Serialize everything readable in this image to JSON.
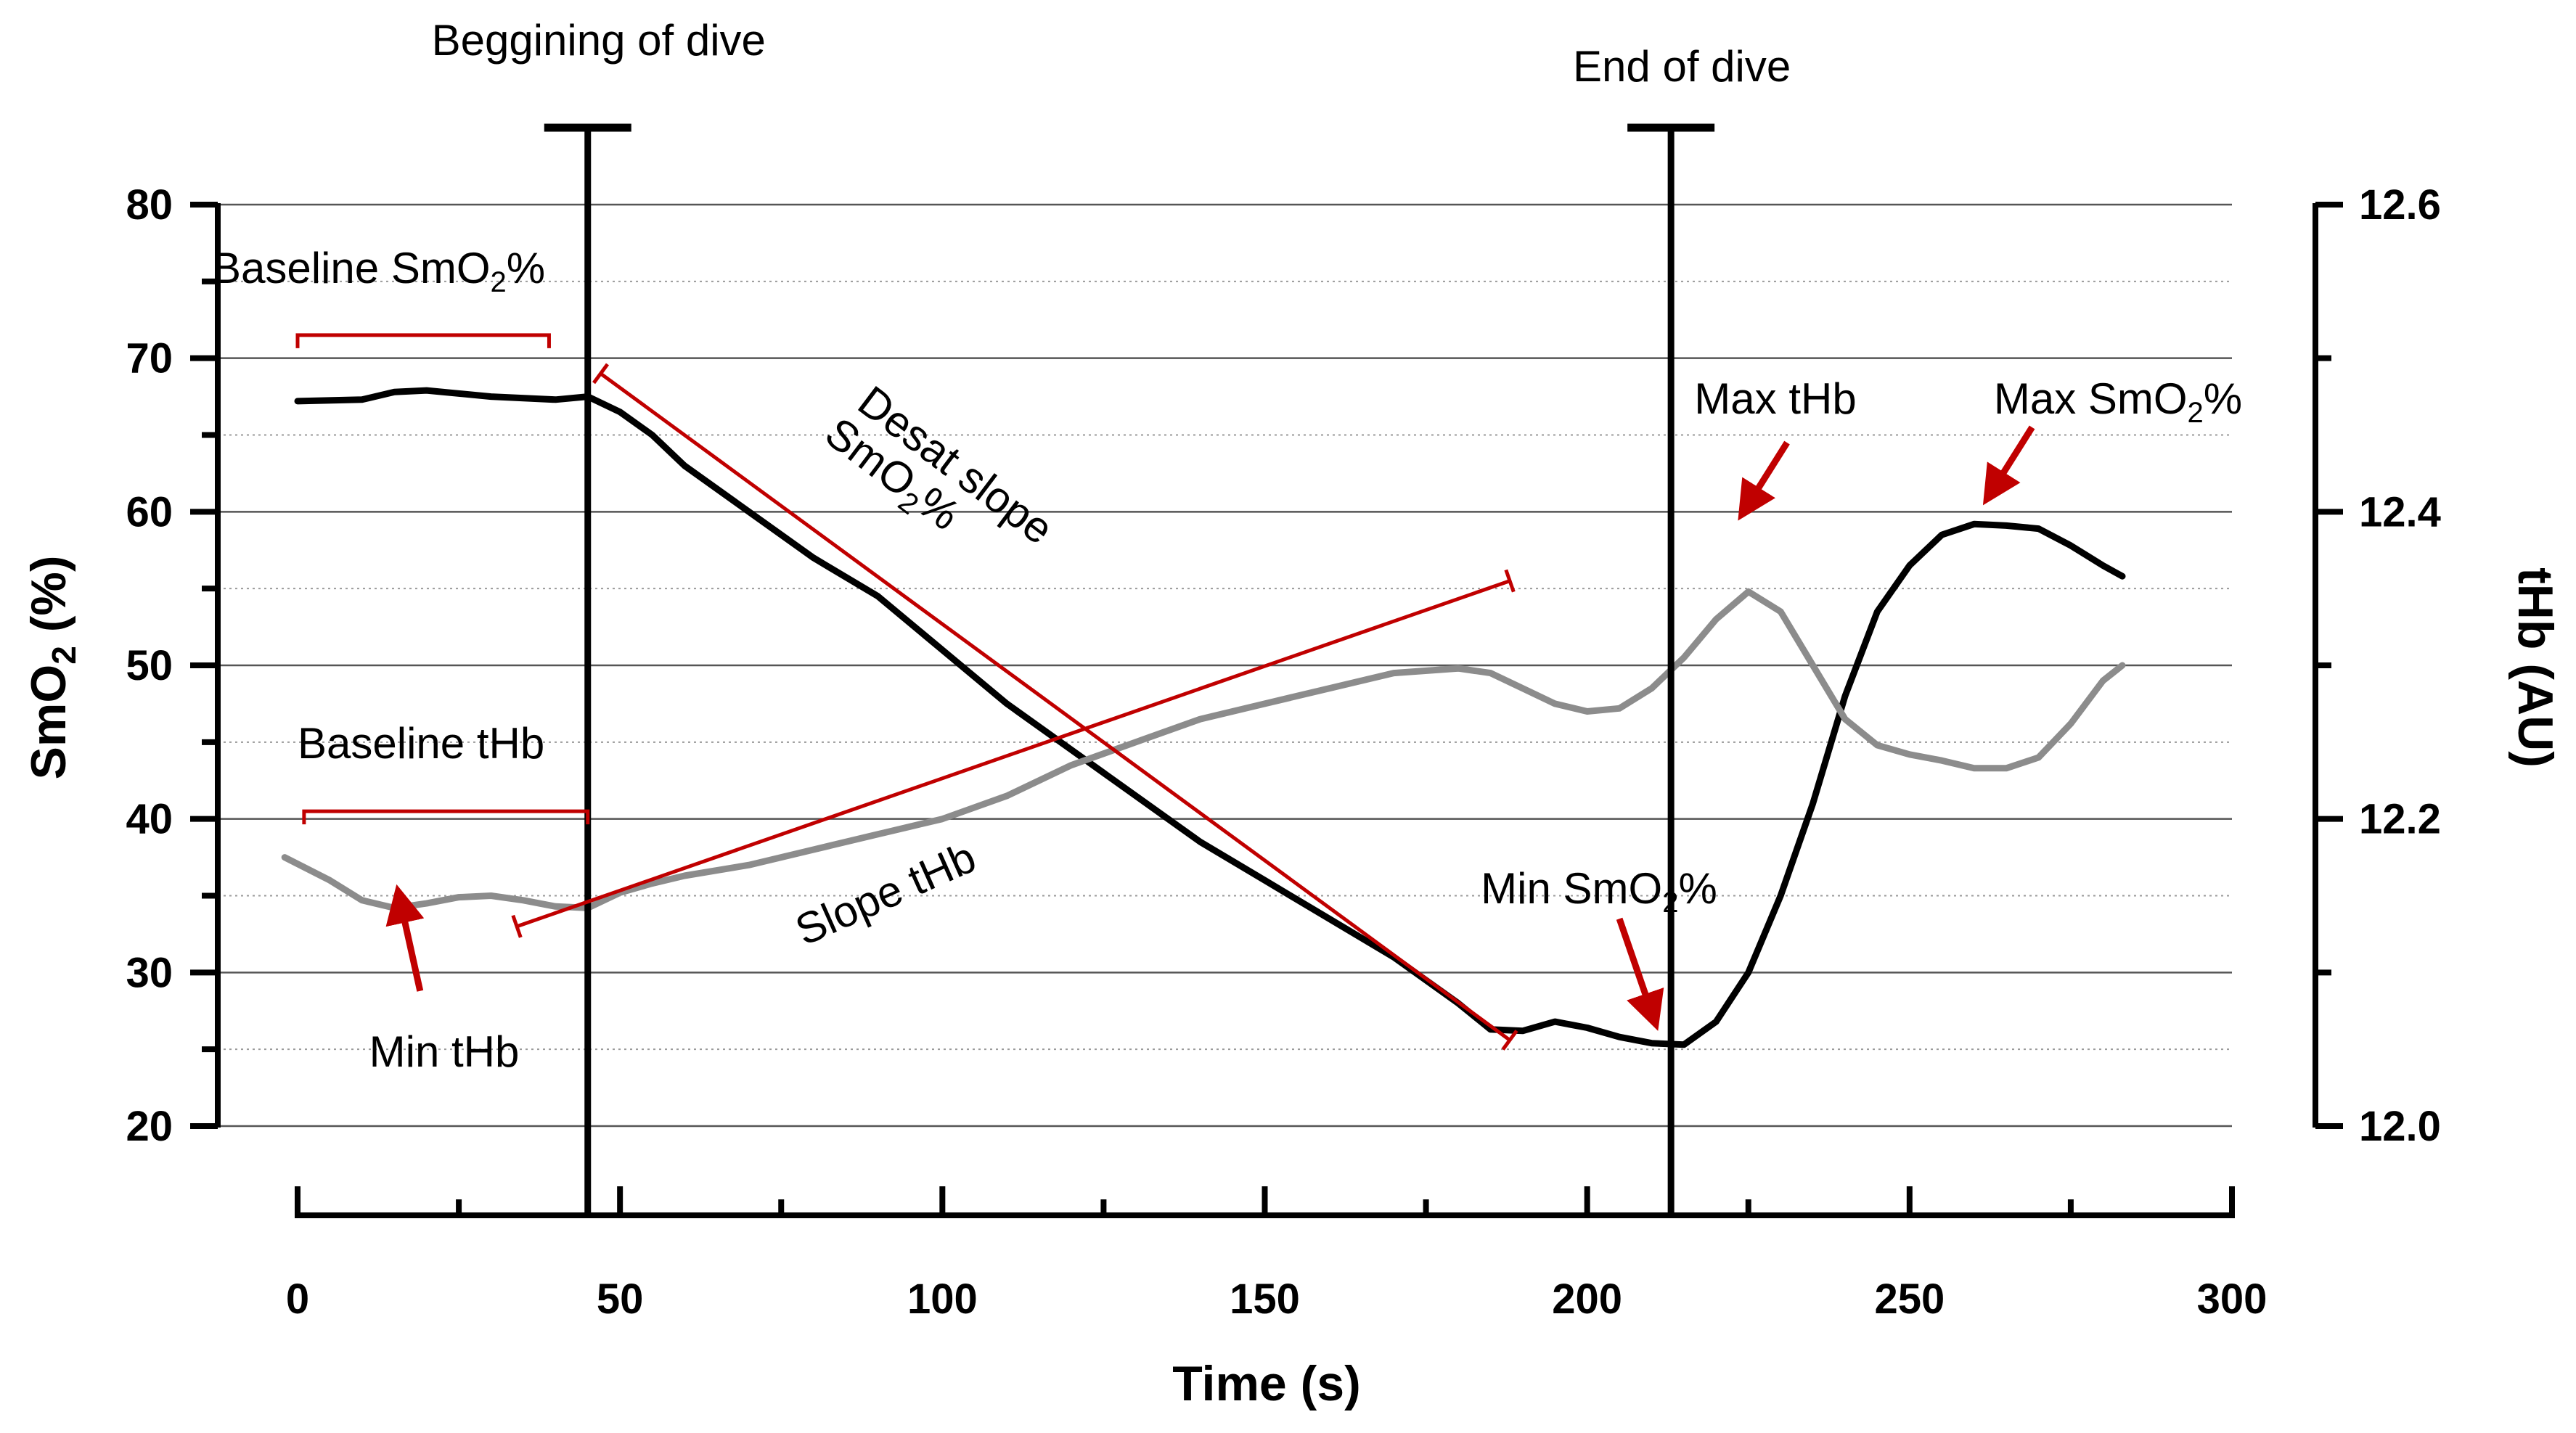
{
  "chart_data": {
    "type": "line",
    "xlabel": "Time (s)",
    "ylabel_left": {
      "main": "SmO",
      "sub": "2",
      "tail": " (%)"
    },
    "ylabel_right": "tHb (AU)",
    "xlim": [
      0,
      300
    ],
    "ylim_left": [
      20,
      80
    ],
    "ylim_right": [
      12.0,
      12.6
    ],
    "x_ticks": [
      0,
      50,
      100,
      150,
      200,
      250,
      300
    ],
    "y_left_ticks": [
      20,
      30,
      40,
      50,
      60,
      70,
      80
    ],
    "y_right_ticks": [
      "12.0",
      "12.2",
      "12.4",
      "12.6"
    ],
    "grid": "horizontal: solid at major SmO2 ticks, dotted at midpoints",
    "series": [
      {
        "name": "SmO2 (%)",
        "axis": "left",
        "color": "#000000",
        "points": [
          [
            0,
            67.2
          ],
          [
            10,
            67.3
          ],
          [
            15,
            67.8
          ],
          [
            20,
            67.9
          ],
          [
            30,
            67.5
          ],
          [
            40,
            67.3
          ],
          [
            45,
            67.5
          ],
          [
            50,
            66.5
          ],
          [
            55,
            65
          ],
          [
            60,
            63
          ],
          [
            70,
            60
          ],
          [
            80,
            57
          ],
          [
            90,
            54.5
          ],
          [
            100,
            51
          ],
          [
            110,
            47.5
          ],
          [
            120,
            44.5
          ],
          [
            130,
            41.5
          ],
          [
            140,
            38.5
          ],
          [
            150,
            36
          ],
          [
            160,
            33.5
          ],
          [
            170,
            31
          ],
          [
            180,
            28
          ],
          [
            185,
            26.3
          ],
          [
            190,
            26.2
          ],
          [
            195,
            26.8
          ],
          [
            200,
            26.4
          ],
          [
            205,
            25.8
          ],
          [
            210,
            25.4
          ],
          [
            215,
            25.3
          ],
          [
            220,
            26.8
          ],
          [
            225,
            30
          ],
          [
            230,
            35
          ],
          [
            235,
            41
          ],
          [
            240,
            48
          ],
          [
            245,
            53.5
          ],
          [
            250,
            56.5
          ],
          [
            255,
            58.5
          ],
          [
            260,
            59.2
          ],
          [
            265,
            59.1
          ],
          [
            270,
            58.9
          ],
          [
            275,
            57.8
          ],
          [
            280,
            56.5
          ],
          [
            283,
            55.8
          ]
        ]
      },
      {
        "name": "tHb (AU)",
        "axis": "right",
        "color": "#8c8c8c",
        "points": [
          [
            -2,
            12.175
          ],
          [
            5,
            12.16
          ],
          [
            10,
            12.147
          ],
          [
            15,
            12.142
          ],
          [
            20,
            12.145
          ],
          [
            25,
            12.149
          ],
          [
            30,
            12.15
          ],
          [
            35,
            12.147
          ],
          [
            40,
            12.143
          ],
          [
            45,
            12.142
          ],
          [
            50,
            12.152
          ],
          [
            55,
            12.158
          ],
          [
            60,
            12.163
          ],
          [
            70,
            12.17
          ],
          [
            80,
            12.18
          ],
          [
            90,
            12.19
          ],
          [
            100,
            12.2
          ],
          [
            110,
            12.215
          ],
          [
            120,
            12.235
          ],
          [
            130,
            12.25
          ],
          [
            140,
            12.265
          ],
          [
            150,
            12.275
          ],
          [
            160,
            12.285
          ],
          [
            170,
            12.295
          ],
          [
            180,
            12.298
          ],
          [
            185,
            12.295
          ],
          [
            190,
            12.285
          ],
          [
            195,
            12.275
          ],
          [
            200,
            12.27
          ],
          [
            205,
            12.272
          ],
          [
            210,
            12.285
          ],
          [
            215,
            12.305
          ],
          [
            220,
            12.33
          ],
          [
            225,
            12.348
          ],
          [
            230,
            12.335
          ],
          [
            235,
            12.3
          ],
          [
            240,
            12.265
          ],
          [
            245,
            12.248
          ],
          [
            250,
            12.242
          ],
          [
            255,
            12.238
          ],
          [
            260,
            12.233
          ],
          [
            265,
            12.233
          ],
          [
            270,
            12.24
          ],
          [
            275,
            12.262
          ],
          [
            280,
            12.29
          ],
          [
            283,
            12.3
          ]
        ]
      }
    ],
    "reference_lines": [
      {
        "name": "begin-dive",
        "x": 45,
        "label": "Beggining of dive"
      },
      {
        "name": "end-dive",
        "x": 213,
        "label": "End of dive"
      }
    ],
    "brackets": [
      {
        "name": "baseline-smo2",
        "x_start": 0,
        "x_end": 39,
        "y": 71.5,
        "label": {
          "main": "Baseline SmO",
          "sub": "2",
          "tail": "%"
        }
      },
      {
        "name": "baseline-thb",
        "x_start": 1,
        "x_end": 45,
        "y": 40.5,
        "label": {
          "main": "Baseline tHb",
          "sub": "",
          "tail": ""
        }
      }
    ],
    "slopes": [
      {
        "name": "desat-slope",
        "from": [
          47,
          69
        ],
        "to": [
          188,
          25.6
        ],
        "label_line1": "Desat slope",
        "label_line2": {
          "main": "SmO",
          "sub": "2",
          "tail": "%"
        }
      },
      {
        "name": "slope-thb",
        "from": [
          34,
          33
        ],
        "to": [
          188,
          55.5
        ],
        "label": "Slope tHb"
      }
    ],
    "arrows": [
      {
        "name": "min-thb",
        "label": "Min tHb",
        "tip": [
          16,
          34.5
        ],
        "tail": [
          19,
          28.8
        ]
      },
      {
        "name": "min-smo2",
        "label": {
          "main": "Min SmO",
          "sub": "2",
          "tail": "%"
        },
        "tip": [
          210,
          27.4
        ],
        "tail": [
          205,
          33.5
        ]
      },
      {
        "name": "max-thb",
        "label": "Max tHb",
        "tip": [
          225,
          60.5
        ],
        "tail": [
          231,
          64.5
        ]
      },
      {
        "name": "max-smo2",
        "label": {
          "main": "Max SmO",
          "sub": "2",
          "tail": "%"
        },
        "tip": [
          263,
          61.5
        ],
        "tail": [
          269,
          65.5
        ]
      }
    ],
    "colors": {
      "annotation": "#c00000",
      "grid": "#555555",
      "smo2": "#000000",
      "thb": "#8c8c8c"
    }
  }
}
